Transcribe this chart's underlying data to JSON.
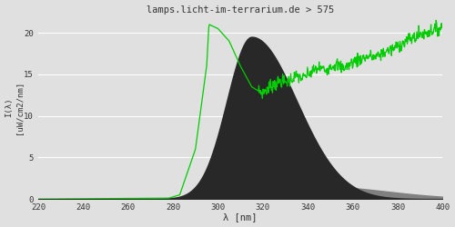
{
  "title": "lamps.licht-im-terrarium.de > 575",
  "xlabel": "λ [nm]",
  "ylabel_line1": "I(λ)",
  "ylabel_line2": "[uW/cm2/nm]",
  "xlim": [
    220,
    400
  ],
  "ylim": [
    0,
    22
  ],
  "yticks": [
    0,
    5,
    10,
    15,
    20
  ],
  "xticks": [
    220,
    240,
    260,
    280,
    300,
    320,
    340,
    360,
    380,
    400
  ],
  "bg_color": "#e0e0e0",
  "plot_bg_color": "#e0e0e0",
  "grid_color": "#ffffff",
  "fill_dark_color": "#282828",
  "fill_light_color": "#808080",
  "line_color": "#00cc00",
  "title_color": "#333333",
  "axis_label_color": "#333333",
  "tick_color": "#333333"
}
